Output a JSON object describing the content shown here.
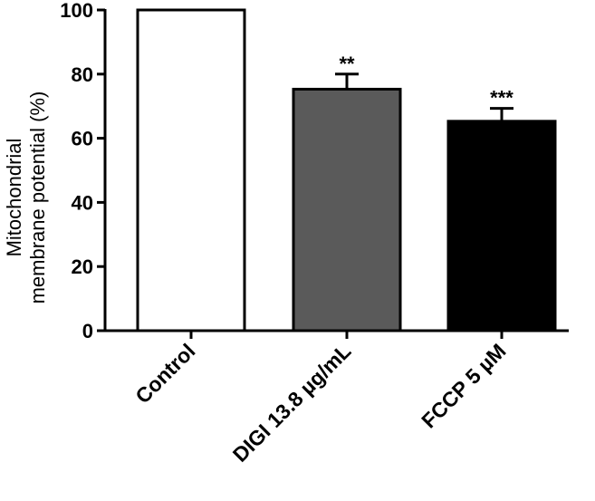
{
  "chart_data": {
    "type": "bar",
    "categories": [
      "Control",
      "DIGI 13.8 µg/mL",
      "FCCP 5 µM"
    ],
    "values": [
      100,
      75.3,
      65.3
    ],
    "errors": [
      0,
      4.7,
      4.0
    ],
    "significance": [
      "",
      "**",
      "***"
    ],
    "bar_colors": [
      "#ffffff",
      "#5a5a5a",
      "#000000"
    ],
    "ylabel_lines": [
      "Mitochondrial",
      "membrane potential (%)"
    ],
    "xlabel": "",
    "ylim": [
      0,
      100
    ],
    "yticks": [
      "0",
      "20",
      "40",
      "60",
      "80",
      "100"
    ],
    "grid": false,
    "legend": "none"
  }
}
